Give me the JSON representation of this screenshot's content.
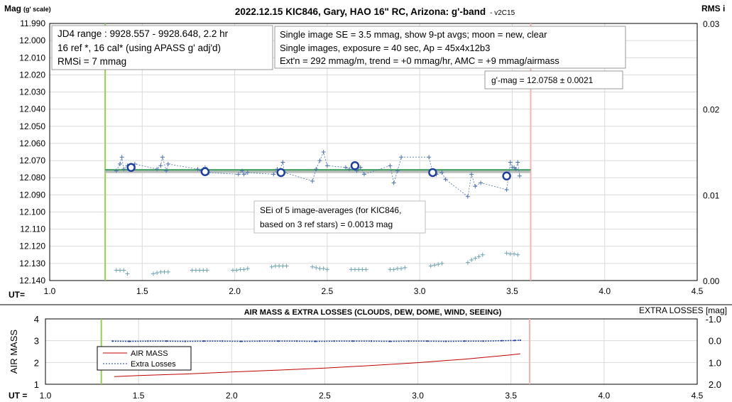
{
  "chart_data": [
    {
      "type": "scatter",
      "title": "2022.12.15 KIC846, Gary, HAO 16\" RC, Arizona: g'-band",
      "version": "- v2C15",
      "ylabel_main": "Mag",
      "ylabel_sub": "(g' scale)",
      "ylabel_right": "RMS i",
      "xlabel": "UT=",
      "xlim": [
        1.0,
        4.5
      ],
      "ylim": [
        12.14,
        11.99
      ],
      "ylim_right": [
        0.0,
        0.03
      ],
      "x_ticks": [
        "1.0",
        "1.5",
        "2.0",
        "2.5",
        "3.0",
        "3.5",
        "4.0",
        "4.5"
      ],
      "y_ticks": [
        "11.990",
        "12.000",
        "12.010",
        "12.020",
        "12.030",
        "12.040",
        "12.050",
        "12.060",
        "12.070",
        "12.080",
        "12.090",
        "12.100",
        "12.110",
        "12.120",
        "12.130",
        "12.140"
      ],
      "y_right_ticks": [
        "0.00",
        "0.01",
        "0.02",
        "0.03"
      ],
      "grid": true,
      "vertical_markers": [
        {
          "x": 1.3,
          "color": "#92d050"
        },
        {
          "x": 3.6,
          "color": "#f4b4b4"
        }
      ],
      "info_box_left": [
        "JD4 range : 9928.557 - 9928.648,  2.2 hr",
        "16 ref *, 16 cal* (using APASS g' adj'd)",
        "RMSi = 7 mmag"
      ],
      "info_box_right": [
        "Single image SE = 3.5 mmag, show  9-pt avgs; moon = new, clear",
        "Single images, exposure = 40 sec, Ap = 45x4x12b3",
        "Ext'n = 292 mmag/m, trend = +0 mmag/hr, AMC = +9 mmag/airmass"
      ],
      "gmag_label": "g'-mag = 12.0758 ± 0.0021",
      "sei_label": [
        "SEi of 5 image-averages (for KIC846,",
        "based on 3 ref stars) = 0.0013 mag"
      ],
      "series": [
        {
          "kind": "single-image-mags",
          "color": "#4a72b0",
          "x": [
            1.36,
            1.38,
            1.39,
            1.4,
            1.42,
            1.44,
            1.46,
            1.58,
            1.6,
            1.61,
            1.63,
            1.64,
            1.8,
            1.82,
            1.84,
            1.86,
            2.02,
            2.04,
            2.05,
            2.07,
            2.21,
            2.23,
            2.24,
            2.26,
            2.27,
            2.42,
            2.44,
            2.46,
            2.48,
            2.5,
            2.6,
            2.62,
            2.64,
            2.66,
            2.68,
            2.7,
            2.84,
            2.86,
            2.88,
            2.9,
            3.05,
            3.07,
            3.09,
            3.12,
            3.14,
            3.26,
            3.28,
            3.3,
            3.33,
            3.47,
            3.49,
            3.5,
            3.51,
            3.52,
            3.53,
            3.54
          ],
          "y": [
            12.076,
            12.072,
            12.068,
            12.075,
            12.073,
            12.074,
            12.072,
            12.075,
            12.073,
            12.068,
            12.076,
            12.072,
            12.075,
            12.076,
            12.074,
            12.077,
            12.078,
            12.076,
            12.078,
            12.077,
            12.078,
            12.075,
            12.076,
            12.071,
            12.077,
            12.082,
            12.075,
            12.07,
            12.065,
            12.073,
            12.074,
            12.075,
            12.072,
            12.076,
            12.074,
            12.078,
            12.073,
            12.083,
            12.076,
            12.068,
            12.068,
            12.077,
            12.078,
            12.077,
            12.081,
            12.091,
            12.078,
            12.085,
            12.083,
            12.087,
            12.071,
            12.074,
            12.074,
            12.075,
            12.071,
            12.079
          ]
        },
        {
          "kind": "9-pt-averages",
          "color": "#1f3f9f",
          "x": [
            1.44,
            1.84,
            2.25,
            2.65,
            3.07,
            3.47
          ],
          "y": [
            12.074,
            12.0765,
            12.077,
            12.073,
            12.077,
            12.079
          ]
        },
        {
          "kind": "rms-i",
          "color": "#6fa3b0",
          "x": [
            1.36,
            1.38,
            1.4,
            1.42,
            1.56,
            1.58,
            1.6,
            1.62,
            1.64,
            1.77,
            1.79,
            1.81,
            1.83,
            1.85,
            1.99,
            2.01,
            2.03,
            2.05,
            2.07,
            2.2,
            2.22,
            2.24,
            2.26,
            2.28,
            2.42,
            2.44,
            2.46,
            2.48,
            2.5,
            2.63,
            2.65,
            2.67,
            2.69,
            2.71,
            2.84,
            2.86,
            2.88,
            2.9,
            2.92,
            3.06,
            3.08,
            3.1,
            3.12,
            3.26,
            3.28,
            3.3,
            3.32,
            3.34,
            3.47,
            3.49,
            3.51,
            3.53
          ],
          "y": [
            0.0012,
            0.0012,
            0.0012,
            0.0008,
            0.0008,
            0.0009,
            0.001,
            0.001,
            0.001,
            0.0012,
            0.0012,
            0.0012,
            0.0012,
            0.0012,
            0.0012,
            0.0012,
            0.0013,
            0.0013,
            0.0014,
            0.0016,
            0.0017,
            0.0017,
            0.0017,
            0.0017,
            0.0016,
            0.0015,
            0.0014,
            0.0014,
            0.0013,
            0.0013,
            0.0013,
            0.0013,
            0.0013,
            0.0013,
            0.0013,
            0.0013,
            0.0014,
            0.0014,
            0.0015,
            0.0017,
            0.0018,
            0.0019,
            0.002,
            0.0021,
            0.0024,
            0.0026,
            0.0028,
            0.003,
            0.0032,
            0.0031,
            0.0031,
            0.003
          ]
        }
      ],
      "fit_line": {
        "x": [
          1.3,
          3.6
        ],
        "y": 12.0758,
        "color": "#3f9f5f"
      },
      "fit_band": {
        "x": [
          1.3,
          3.6
        ],
        "y": 12.0758,
        "color": "#b8bcb8"
      }
    },
    {
      "type": "line",
      "title": "AIR MASS & EXTRA LOSSES (CLOUDS, DEW, DOME, WIND, SEEING)",
      "ylabel": "AIR MASS",
      "ylabel_right": "EXTRA LOSSES [mag]",
      "xlabel": "UT =",
      "xlim": [
        1.0,
        4.5
      ],
      "ylim": [
        1,
        4
      ],
      "ylim_right": [
        2.0,
        -1.0
      ],
      "x_ticks": [
        "1.0",
        "1.5",
        "2.0",
        "2.5",
        "3.0",
        "3.5",
        "4.0",
        "4.5"
      ],
      "y_ticks": [
        "1",
        "2",
        "3",
        "4"
      ],
      "y_right_ticks": [
        "2.0",
        "1.0",
        "0.0",
        "-1.0"
      ],
      "grid": true,
      "vertical_markers": [
        {
          "x": 1.3,
          "color": "#92d050"
        },
        {
          "x": 3.6,
          "color": "#f4b4b4"
        }
      ],
      "legend": [
        "AIR MASS",
        "Extra Losses"
      ],
      "series": [
        {
          "name": "AIR MASS",
          "color": "#c00000",
          "x": [
            1.37,
            1.5,
            1.75,
            2.0,
            2.25,
            2.5,
            2.75,
            3.0,
            3.25,
            3.5,
            3.55
          ],
          "y": [
            1.35,
            1.4,
            1.47,
            1.56,
            1.65,
            1.74,
            1.86,
            1.99,
            2.15,
            2.35,
            2.4
          ]
        },
        {
          "name": "Extra Losses",
          "color": "#1f3f9f",
          "x": [
            1.36,
            1.45,
            1.55,
            1.65,
            1.75,
            1.85,
            1.95,
            2.05,
            2.15,
            2.25,
            2.35,
            2.45,
            2.55,
            2.65,
            2.75,
            2.85,
            2.95,
            3.05,
            3.15,
            3.25,
            3.35,
            3.45,
            3.52,
            3.55
          ],
          "y": [
            0.02,
            0.03,
            0.02,
            0.02,
            0.03,
            0.02,
            0.02,
            0.03,
            0.02,
            0.02,
            0.02,
            0.03,
            0.02,
            0.02,
            0.02,
            0.03,
            0.02,
            0.02,
            0.03,
            0.02,
            0.02,
            0.0,
            -0.01,
            -0.02
          ]
        }
      ]
    }
  ]
}
